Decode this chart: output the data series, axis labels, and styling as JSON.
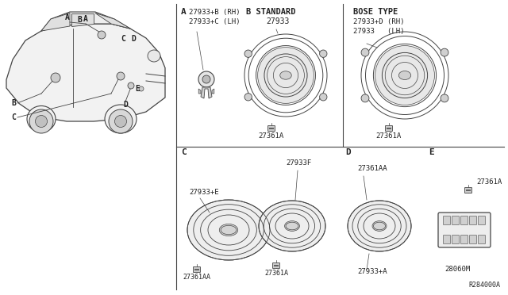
{
  "bg_color": "#ffffff",
  "line_color": "#444444",
  "text_color": "#222222",
  "fig_width": 6.4,
  "fig_height": 3.72,
  "dpi": 100,
  "labels": {
    "A_label": "A",
    "A_part1": "27933+B (RH)",
    "A_part2": "27933+C (LH)",
    "B_standard": "B STANDARD",
    "B_part": "27933",
    "B_connector": "27361A",
    "Bose_type": "BOSE TYPE",
    "Bose_part1": "27933+D (RH)",
    "Bose_part2": "27933   (LH)",
    "Bose_connector": "27361A",
    "C_label": "C",
    "C_part1": "27933+E",
    "C_part2": "27933F",
    "C_connector1": "27361AA",
    "C_connector2": "27361A",
    "D_label": "D",
    "D_part": "27933+A",
    "D_connector": "27361AA",
    "E_label": "E",
    "E_part": "28060M",
    "E_connector": "27361A",
    "ref": "R284000A"
  }
}
